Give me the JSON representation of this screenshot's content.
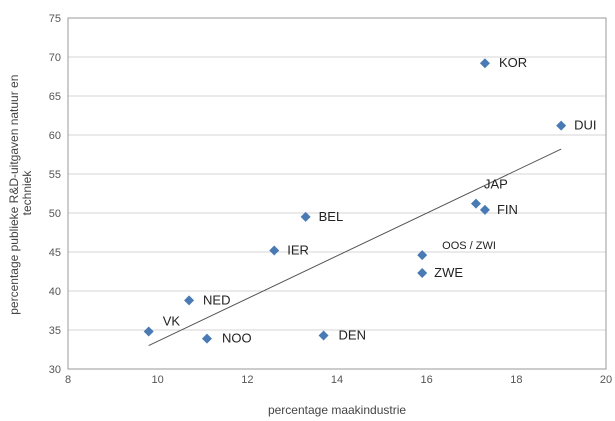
{
  "chart_data": {
    "type": "scatter",
    "xlabel": "percentage maakindustrie",
    "ylabel": "percentage publieke R&D-uitgaven natuur en techniek",
    "xlim": [
      8,
      20
    ],
    "ylim": [
      30,
      75
    ],
    "xticks": [
      "8",
      "10",
      "12",
      "14",
      "16",
      "18",
      "20"
    ],
    "yticks": [
      "30",
      "35",
      "40",
      "45",
      "50",
      "55",
      "60",
      "65",
      "70",
      "75"
    ],
    "grid": "horizontal",
    "marker_color": "#4a7ab4",
    "trendline": {
      "x": [
        9.8,
        19.0
      ],
      "y": [
        33.0,
        58.2
      ]
    },
    "points": [
      {
        "label": "KOR",
        "x": 17.3,
        "y": 69.2
      },
      {
        "label": "DUI",
        "x": 19.0,
        "y": 61.2
      },
      {
        "label": "JAP",
        "x": 17.1,
        "y": 51.2
      },
      {
        "label": "FIN",
        "x": 17.3,
        "y": 50.4
      },
      {
        "label": "BEL",
        "x": 13.3,
        "y": 49.5
      },
      {
        "label": "IER",
        "x": 12.6,
        "y": 45.2
      },
      {
        "label": "OOS / ZWI",
        "x": 15.9,
        "y": 44.6
      },
      {
        "label": "ZWE",
        "x": 15.9,
        "y": 42.3
      },
      {
        "label": "NED",
        "x": 10.7,
        "y": 38.8
      },
      {
        "label": "VK",
        "x": 9.8,
        "y": 34.8
      },
      {
        "label": "NOO",
        "x": 11.1,
        "y": 33.9
      },
      {
        "label": "DEN",
        "x": 13.7,
        "y": 34.3
      }
    ]
  }
}
